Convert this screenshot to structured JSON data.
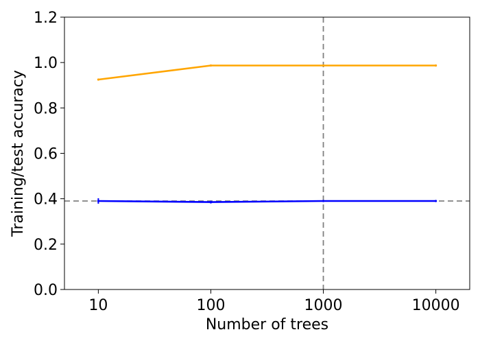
{
  "chart_data": {
    "type": "line",
    "title": "",
    "xlabel": "Number of trees",
    "ylabel": "Training/test accuracy",
    "x_scale": "log",
    "x": [
      10,
      100,
      1000,
      10000
    ],
    "x_tick_labels": [
      "10",
      "100",
      "1000",
      "10000"
    ],
    "xlim": [
      5,
      20000
    ],
    "ylim": [
      0,
      1.2
    ],
    "y_ticks": [
      0.0,
      0.2,
      0.4,
      0.6,
      0.8,
      1.0,
      1.2
    ],
    "y_tick_labels": [
      "0.0",
      "0.2",
      "0.4",
      "0.6",
      "0.8",
      "1.0",
      "1.2"
    ],
    "grid": false,
    "legend": "none",
    "series": [
      {
        "values": [
          0.925,
          0.987,
          0.987,
          0.987
        ],
        "color": "#FFA500"
      },
      {
        "values": [
          0.39,
          0.385,
          0.39,
          0.39
        ],
        "color": "#0000FF",
        "error": [
          0.012,
          0.006,
          0.003,
          0.002
        ]
      }
    ],
    "reference_lines": [
      {
        "orientation": "horizontal",
        "value": 0.39,
        "style": "dashed",
        "color": "#808080"
      },
      {
        "orientation": "vertical",
        "value": 1000,
        "style": "dashed",
        "color": "#808080"
      }
    ]
  }
}
